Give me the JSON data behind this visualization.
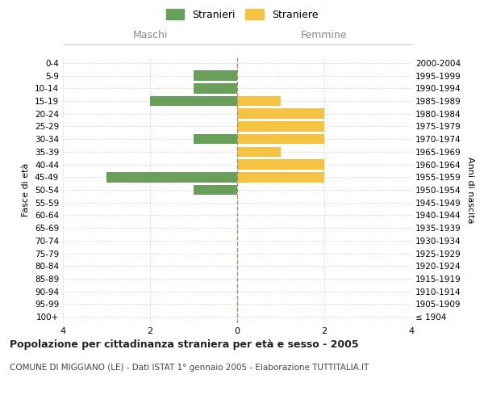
{
  "age_groups": [
    "100+",
    "95-99",
    "90-94",
    "85-89",
    "80-84",
    "75-79",
    "70-74",
    "65-69",
    "60-64",
    "55-59",
    "50-54",
    "45-49",
    "40-44",
    "35-39",
    "30-34",
    "25-29",
    "20-24",
    "15-19",
    "10-14",
    "5-9",
    "0-4"
  ],
  "birth_years": [
    "≤ 1904",
    "1905-1909",
    "1910-1914",
    "1915-1919",
    "1920-1924",
    "1925-1929",
    "1930-1934",
    "1935-1939",
    "1940-1944",
    "1945-1949",
    "1950-1954",
    "1955-1959",
    "1960-1964",
    "1965-1969",
    "1970-1974",
    "1975-1979",
    "1980-1984",
    "1985-1989",
    "1990-1994",
    "1995-1999",
    "2000-2004"
  ],
  "maschi": [
    0,
    0,
    0,
    0,
    0,
    0,
    0,
    0,
    0,
    0,
    1,
    3,
    0,
    0,
    1,
    0,
    0,
    2,
    1,
    1,
    0
  ],
  "femmine": [
    0,
    0,
    0,
    0,
    0,
    0,
    0,
    0,
    0,
    0,
    0,
    2,
    2,
    1,
    2,
    2,
    2,
    1,
    0,
    0,
    0
  ],
  "color_maschi": "#6a9f5b",
  "color_femmine": "#f5c242",
  "header_left": "Maschi",
  "header_right": "Femmine",
  "ylabel_left": "Fasce di età",
  "ylabel_right": "Anni di nascita",
  "title": "Popolazione per cittadinanza straniera per età e sesso - 2005",
  "subtitle": "COMUNE DI MIGGIANO (LE) - Dati ISTAT 1° gennaio 2005 - Elaborazione TUTTITALIA.IT",
  "legend_stranieri": "Stranieri",
  "legend_straniere": "Straniere",
  "xlim": 4,
  "background_color": "#ffffff",
  "grid_color": "#cccccc",
  "center_line_color": "#999966",
  "bar_height": 0.8
}
